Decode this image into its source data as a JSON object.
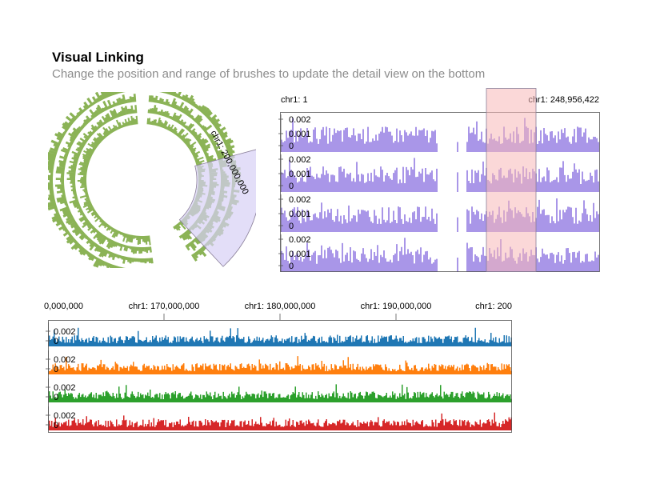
{
  "header": {
    "title": "Visual Linking",
    "subtitle": "Change the position and range of brushes to update the detail view on the bottom"
  },
  "colors": {
    "circular_track": "#8bb356",
    "overview_track": "#a996e8",
    "brush_fill": "#f7b8b8",
    "brush_stroke": "#8a7f99",
    "circular_brush_fill": "#d7d0f5",
    "detail_series": [
      "#1f77b4",
      "#ff7f0e",
      "#2ca02c",
      "#d62728"
    ]
  },
  "circular": {
    "brush_label": "chr1: 200,000,000"
  },
  "overview": {
    "start_label": "chr1: 1",
    "end_label": "chr1: 248,956,422",
    "tick_labels": [
      "0.002",
      "0.001",
      "0"
    ],
    "track_count": 4
  },
  "detail": {
    "axis_labels": [
      "0,000,000",
      "chr1: 170,000,000",
      "chr1: 180,000,000",
      "chr1: 190,000,000",
      "chr1: 200"
    ],
    "tick_labels": [
      "0.002",
      "0"
    ],
    "track_count": 4
  }
}
